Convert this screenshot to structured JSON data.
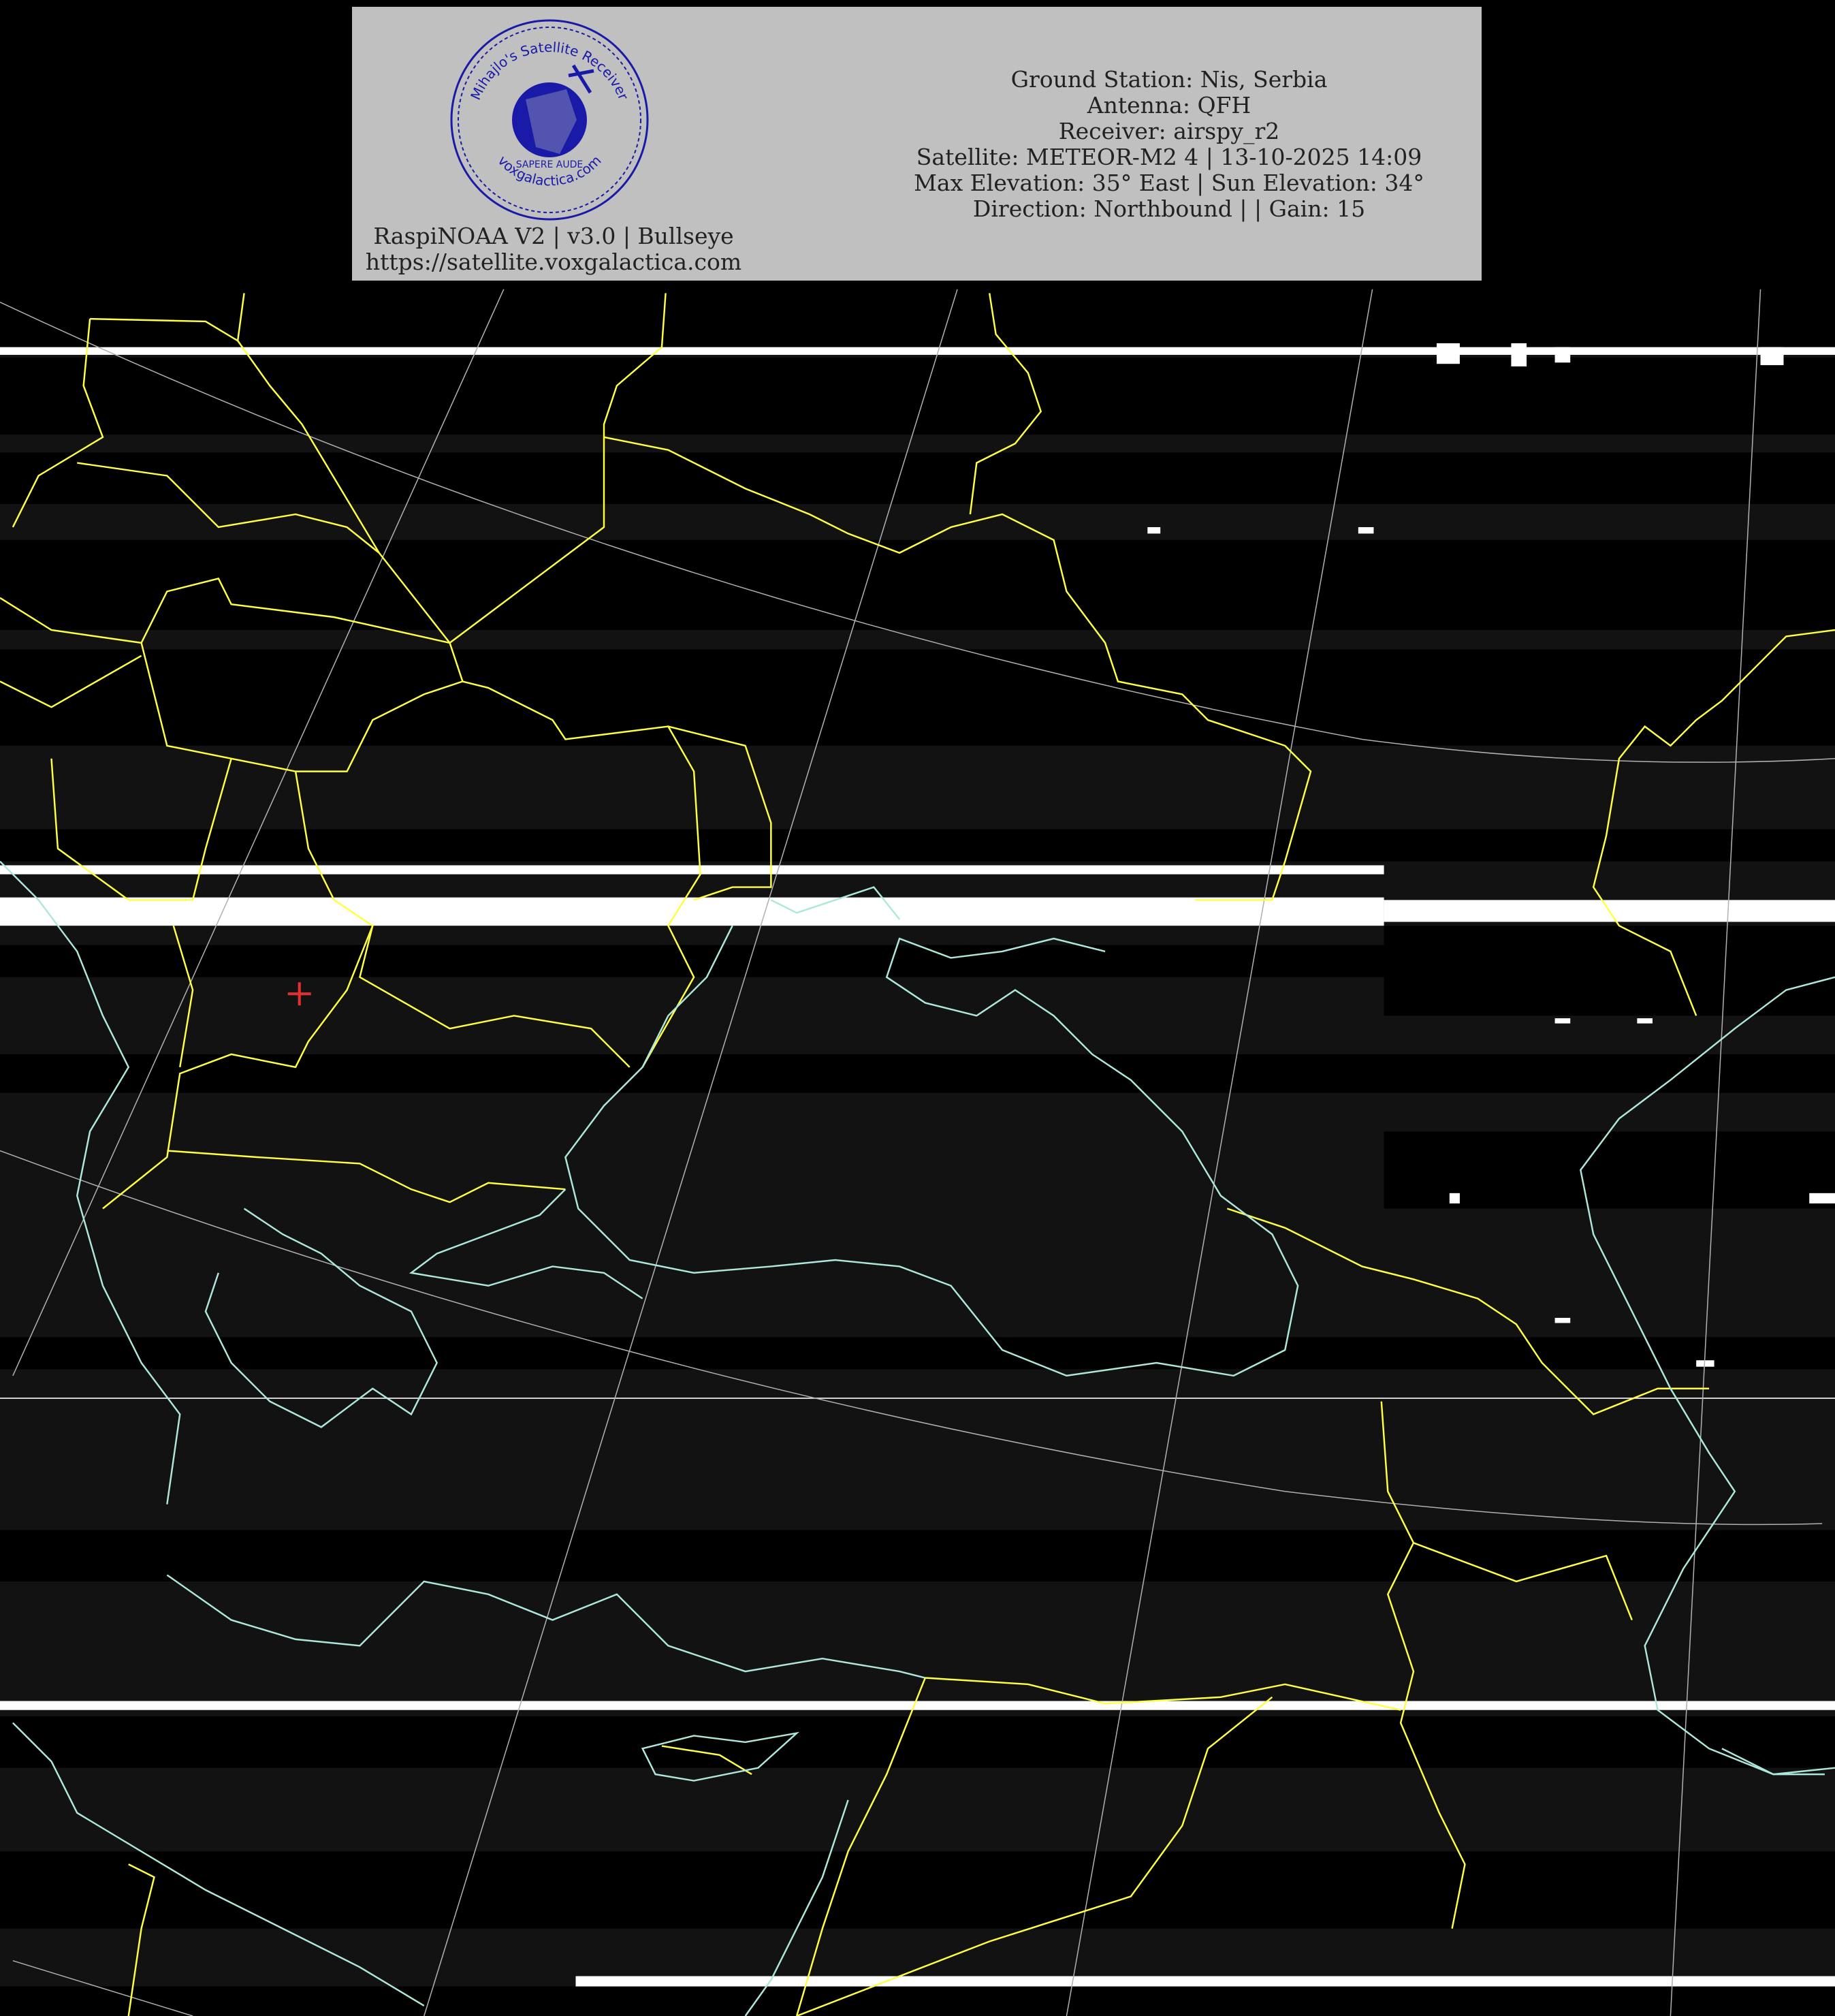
{
  "header": {
    "logo": {
      "ring_text_top": "Mihajlo's Satellite Receiver",
      "ring_text_bottom": "voxgalactica.com",
      "motto": "SAPERE AUDE",
      "color": "#1a1aa8"
    },
    "info_lines": [
      "Ground Station: Nis, Serbia",
      "Antenna: QFH",
      "Receiver: airspy_r2",
      "Satellite: METEOR-M2 4 | 13-10-2025 14:09",
      "Max Elevation: 35° East | Sun Elevation: 34°",
      "Direction: Northbound | | Gain: 15"
    ],
    "footer_lines": [
      "RaspiNOAA V2 | v3.0 | Bullseye",
      "https://satellite.voxgalactica.com"
    ],
    "background": "#c0c0c0"
  },
  "map": {
    "border_color": "#ffff44",
    "coast_color": "#aee8dc",
    "grid_color": "#b0b0b0",
    "ground_station_marker_color": "#e03030",
    "ground_station_marker": "plus-icon"
  }
}
